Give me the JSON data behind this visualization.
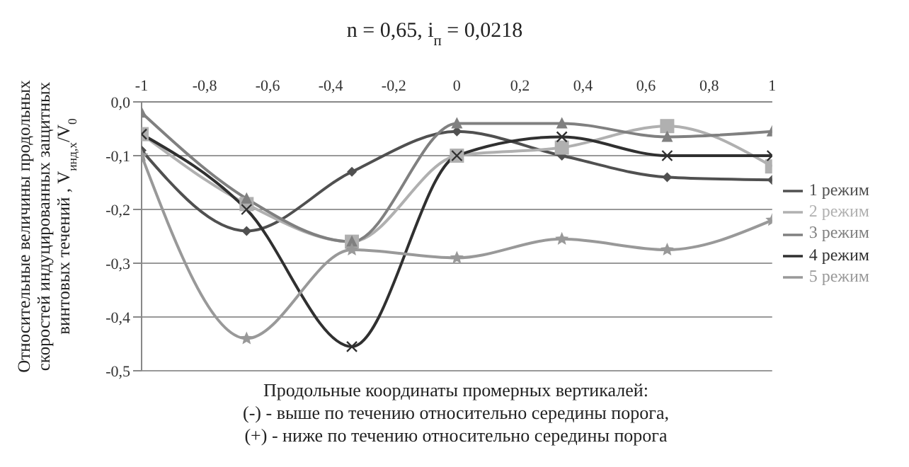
{
  "chart_data": {
    "type": "line",
    "title": "n = 0,65, i$_{п}$ = 0,0218",
    "xlabel": "Продольные координаты промерных вертикалей:\n(-) - выше по течению относительно середины порога,\n(+) - ниже по течению относительно середины порога",
    "ylabel": "Относительные величины продольных\nскоростей индуцированных защитных\nвинтовых течений , V$_{инд,x}$/V$_{0}$",
    "x": [
      -1,
      -0.667,
      -0.333,
      0,
      0.333,
      0.667,
      1
    ],
    "series": [
      {
        "name": "1 режим",
        "color": "#505050",
        "marker": "diamond",
        "values": [
          -0.09,
          -0.24,
          -0.13,
          -0.055,
          -0.1,
          -0.14,
          -0.145
        ]
      },
      {
        "name": "2 режим",
        "color": "#b0b0b0",
        "marker": "square",
        "values": [
          -0.06,
          -0.19,
          -0.26,
          -0.1,
          -0.085,
          -0.045,
          -0.12
        ]
      },
      {
        "name": "3 режим",
        "color": "#808080",
        "marker": "triangle",
        "values": [
          -0.02,
          -0.18,
          -0.26,
          -0.04,
          -0.04,
          -0.065,
          -0.055
        ]
      },
      {
        "name": "4 режим",
        "color": "#303030",
        "marker": "cross",
        "values": [
          -0.06,
          -0.2,
          -0.455,
          -0.1,
          -0.065,
          -0.1,
          -0.1
        ]
      },
      {
        "name": "5 режим",
        "color": "#999999",
        "marker": "star",
        "values": [
          -0.1,
          -0.44,
          -0.275,
          -0.29,
          -0.255,
          -0.275,
          -0.22
        ]
      }
    ],
    "xlim": [
      -1,
      1
    ],
    "xticks": [
      {
        "value": -1,
        "label": "-1"
      },
      {
        "value": -0.8,
        "label": "-0,8"
      },
      {
        "value": -0.6,
        "label": "-0,6"
      },
      {
        "value": -0.4,
        "label": "-0,4"
      },
      {
        "value": -0.2,
        "label": "-0,2"
      },
      {
        "value": 0,
        "label": "0"
      },
      {
        "value": 0.2,
        "label": "0,2"
      },
      {
        "value": 0.4,
        "label": "0,4"
      },
      {
        "value": 0.6,
        "label": "0,6"
      },
      {
        "value": 0.8,
        "label": "0,8"
      },
      {
        "value": 1,
        "label": "1"
      }
    ],
    "ylim": [
      -0.5,
      0
    ],
    "yticks": [
      {
        "value": 0,
        "label": "0,0"
      },
      {
        "value": -0.1,
        "label": "-0,1"
      },
      {
        "value": -0.2,
        "label": "-0,2"
      },
      {
        "value": -0.3,
        "label": "-0,3"
      },
      {
        "value": -0.4,
        "label": "-0,4"
      },
      {
        "value": -0.5,
        "label": "-0,5"
      }
    ],
    "grid": "y",
    "legend": "right"
  }
}
